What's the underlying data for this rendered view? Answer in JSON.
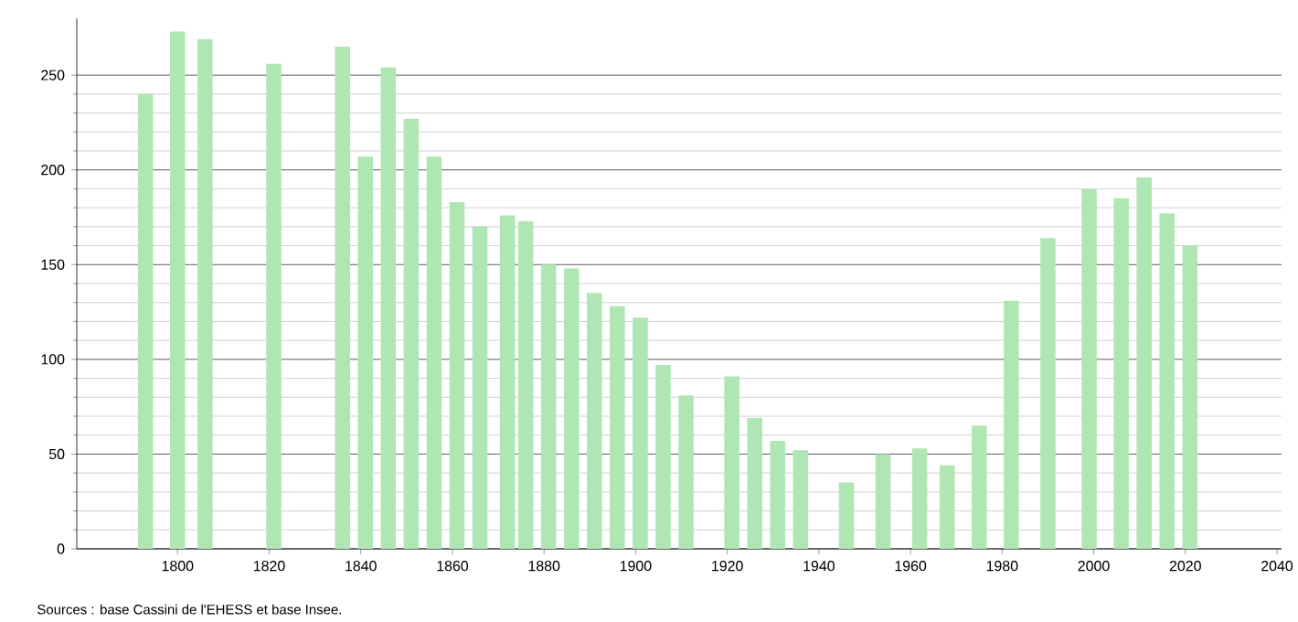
{
  "chart_data": {
    "type": "bar",
    "color": "#b0e6b4",
    "x": [
      1793,
      1800,
      1806,
      1821,
      1836,
      1841,
      1846,
      1851,
      1856,
      1861,
      1866,
      1872,
      1876,
      1881,
      1886,
      1891,
      1896,
      1901,
      1906,
      1911,
      1921,
      1926,
      1931,
      1936,
      1946,
      1954,
      1962,
      1968,
      1975,
      1982,
      1990,
      1999,
      2006,
      2011,
      2016,
      2021
    ],
    "values": [
      240,
      273,
      269,
      256,
      265,
      207,
      254,
      227,
      207,
      183,
      170,
      176,
      173,
      150,
      148,
      135,
      128,
      122,
      97,
      81,
      91,
      69,
      57,
      52,
      35,
      50,
      53,
      44,
      65,
      131,
      164,
      190,
      185,
      196,
      177,
      160
    ],
    "xlim": [
      1778,
      2041
    ],
    "xticks": [
      1800,
      1820,
      1840,
      1860,
      1880,
      1900,
      1920,
      1940,
      1960,
      1980,
      2000,
      2020,
      2040
    ],
    "ylim": [
      0,
      280
    ],
    "yticks": [
      0,
      50,
      100,
      150,
      200,
      250
    ],
    "grid": "y",
    "annotations": [
      "Sources : base Cassini de l'EHESS et base Insee."
    ]
  }
}
